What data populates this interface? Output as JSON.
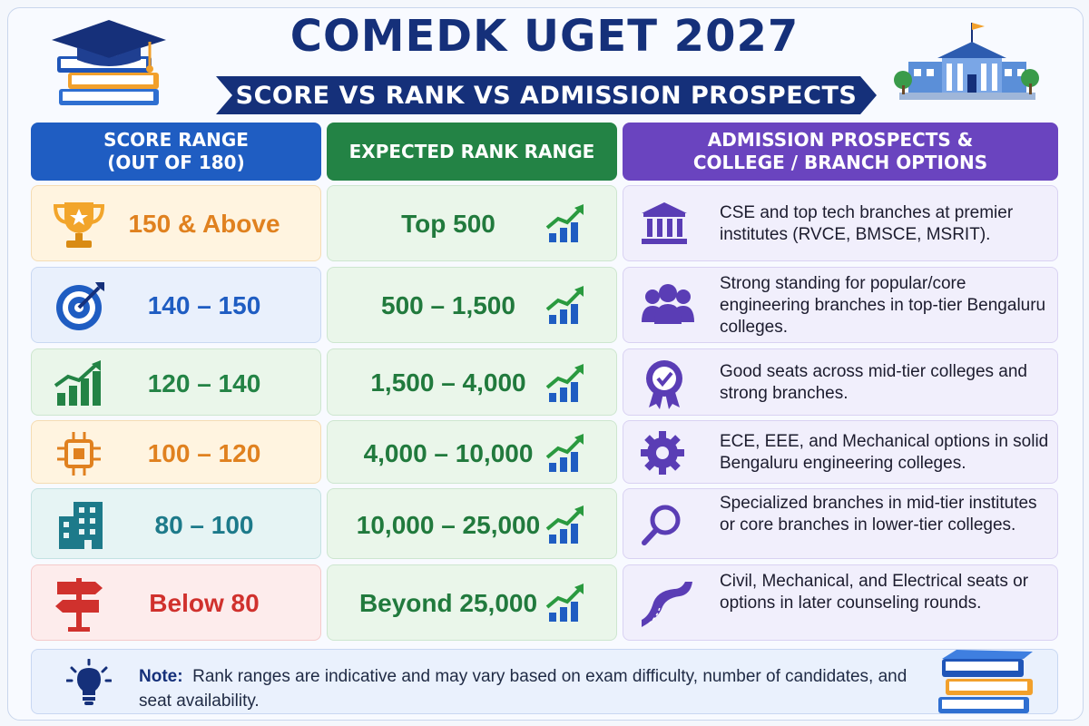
{
  "header": {
    "title": "COMEDK UGET 2027",
    "subtitle": "SCORE VS RANK VS ADMISSION PROSPECTS"
  },
  "columns": {
    "score": "SCORE RANGE\n(OUT OF 180)",
    "rank": "EXPECTED RANK RANGE",
    "prospects": "ADMISSION PROSPECTS &\nCOLLEGE / BRANCH OPTIONS"
  },
  "rows": [
    {
      "score": "150 & Above",
      "rank": "Top 500",
      "prospects": "CSE and top tech branches at premier institutes (RVCE, BMSCE, MSRIT).",
      "score_icon": "trophy-icon",
      "prospect_icon": "institution-icon",
      "color": "#e0811f",
      "bg": "#fff4e0"
    },
    {
      "score": "140 – 150",
      "rank": "500 – 1,500",
      "prospects": "Strong standing for popular/core engineering branches in top-tier Bengaluru colleges.",
      "score_icon": "target-icon",
      "prospect_icon": "group-icon",
      "color": "#1f5dc2",
      "bg": "#e9f0fc"
    },
    {
      "score": "120 – 140",
      "rank": "1,500 – 4,000",
      "prospects": "Good seats across mid-tier colleges and strong branches.",
      "score_icon": "growth-chart-icon",
      "prospect_icon": "badge-icon",
      "color": "#238345",
      "bg": "#eaf6ea"
    },
    {
      "score": "100 – 120",
      "rank": "4,000 – 10,000",
      "prospects": "ECE, EEE, and Mechanical options in solid Bengaluru engineering colleges.",
      "score_icon": "chip-icon",
      "prospect_icon": "gear-icon",
      "color": "#e0811f",
      "bg": "#fff4e0"
    },
    {
      "score": "80 – 100",
      "rank": "10,000 – 25,000",
      "prospects": "Specialized branches in mid-tier institutes or core branches in lower-tier colleges.",
      "score_icon": "building-icon",
      "prospect_icon": "magnifier-icon",
      "color": "#1d7a8a",
      "bg": "#e6f4f4"
    },
    {
      "score": "Below 80",
      "rank": "Beyond 25,000",
      "prospects": "Civil, Mechanical, and Electrical seats or options in later counseling rounds.",
      "score_icon": "signpost-icon",
      "prospect_icon": "road-icon",
      "color": "#d0312d",
      "bg": "#fdecec"
    }
  ],
  "note": {
    "label": "Note:",
    "text": "Rank ranges are indicative and may vary based on exam difficulty, number of candidates, and seat availability."
  }
}
